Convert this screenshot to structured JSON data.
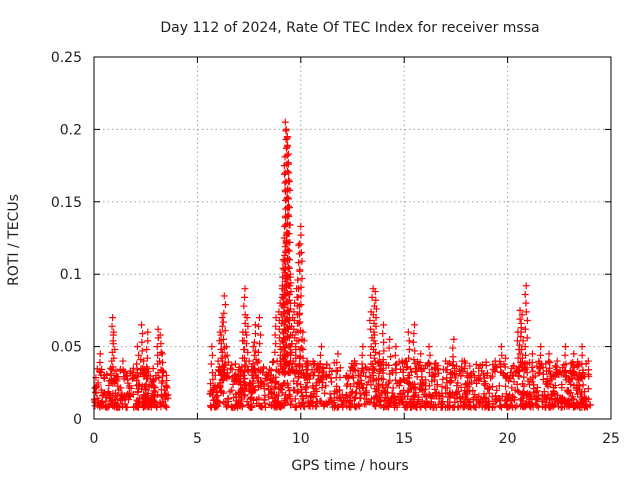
{
  "chart_data": {
    "type": "scatter",
    "title": "Day 112 of 2024, Rate Of TEC Index for receiver mssa",
    "xlabel": "GPS time / hours",
    "ylabel": "ROTI / TECUs",
    "xlim": [
      0,
      25
    ],
    "ylim": [
      0,
      0.25
    ],
    "xticks": [
      0,
      5,
      10,
      15,
      20,
      25
    ],
    "xtick_labels": [
      "0",
      "5",
      "10",
      "15",
      "20",
      "25"
    ],
    "yticks": [
      0,
      0.05,
      0.1,
      0.15,
      0.2,
      0.25
    ],
    "ytick_labels": [
      "0",
      "0.05",
      "0.1",
      "0.15",
      "0.2",
      "0.25"
    ],
    "grid": true,
    "marker": "+",
    "color": "#ff0000",
    "series": [
      {
        "name": "ROTI",
        "x": [
          0.1,
          0.2,
          0.3,
          0.35,
          0.5,
          0.6,
          0.8,
          0.9,
          0.95,
          1.0,
          1.2,
          1.4,
          1.6,
          1.7,
          1.9,
          2.1,
          2.3,
          2.4,
          2.5,
          2.6,
          2.8,
          3.0,
          3.1,
          3.2,
          3.3,
          3.4,
          3.5,
          0.4,
          1.5,
          2.2,
          2.9,
          5.7,
          5.8,
          5.9,
          6.0,
          6.1,
          6.2,
          6.3,
          6.4,
          6.6,
          6.8,
          7.0,
          7.2,
          7.3,
          7.4,
          7.5,
          7.7,
          7.8,
          8.0,
          8.2,
          8.4,
          8.6,
          8.8,
          9.0,
          9.1,
          9.15,
          9.2,
          9.25,
          9.3,
          9.35,
          9.4,
          9.45,
          9.5,
          9.6,
          9.7,
          9.8,
          9.9,
          10.0,
          10.1,
          10.3,
          10.6,
          11.0,
          11.4,
          11.8,
          12.2,
          12.6,
          13.0,
          13.4,
          13.5,
          13.6,
          13.8,
          14.0,
          14.3,
          14.6,
          14.9,
          15.2,
          15.5,
          15.8,
          16.2,
          16.6,
          17.0,
          17.4,
          17.8,
          18.2,
          18.6,
          19.0,
          19.4,
          19.7,
          19.9,
          20.2,
          20.5,
          20.6,
          20.7,
          20.9,
          21.2,
          21.6,
          22.0,
          22.4,
          22.8,
          23.2,
          23.6,
          23.9,
          6.5,
          7.6,
          8.5,
          10.8,
          12.0,
          14.8,
          16.8,
          18.8,
          21.0,
          22.6,
          23.4
        ],
        "y": [
          0.018,
          0.025,
          0.045,
          0.02,
          0.03,
          0.015,
          0.035,
          0.07,
          0.06,
          0.025,
          0.02,
          0.04,
          0.03,
          0.018,
          0.035,
          0.05,
          0.065,
          0.04,
          0.02,
          0.06,
          0.025,
          0.03,
          0.062,
          0.058,
          0.045,
          0.02,
          0.03,
          0.012,
          0.015,
          0.01,
          0.012,
          0.05,
          0.02,
          0.015,
          0.04,
          0.06,
          0.07,
          0.085,
          0.05,
          0.035,
          0.03,
          0.025,
          0.06,
          0.09,
          0.07,
          0.04,
          0.05,
          0.065,
          0.07,
          0.035,
          0.03,
          0.025,
          0.07,
          0.08,
          0.09,
          0.11,
          0.125,
          0.205,
          0.2,
          0.195,
          0.176,
          0.164,
          0.1,
          0.07,
          0.08,
          0.09,
          0.12,
          0.133,
          0.06,
          0.04,
          0.03,
          0.05,
          0.035,
          0.045,
          0.03,
          0.04,
          0.05,
          0.074,
          0.09,
          0.088,
          0.045,
          0.065,
          0.055,
          0.05,
          0.04,
          0.06,
          0.065,
          0.045,
          0.05,
          0.035,
          0.04,
          0.055,
          0.04,
          0.03,
          0.035,
          0.03,
          0.04,
          0.05,
          0.042,
          0.035,
          0.06,
          0.075,
          0.072,
          0.092,
          0.045,
          0.05,
          0.045,
          0.04,
          0.05,
          0.045,
          0.05,
          0.04,
          0.012,
          0.015,
          0.01,
          0.012,
          0.01,
          0.013,
          0.011,
          0.012,
          0.01,
          0.013,
          0.011
        ]
      }
    ],
    "bands": [
      {
        "x_range": [
          0.0,
          3.6
        ],
        "y_min": 0.008,
        "y_max": 0.035
      },
      {
        "x_range": [
          5.6,
          24.0
        ],
        "y_min": 0.008,
        "y_max": 0.04
      }
    ]
  }
}
